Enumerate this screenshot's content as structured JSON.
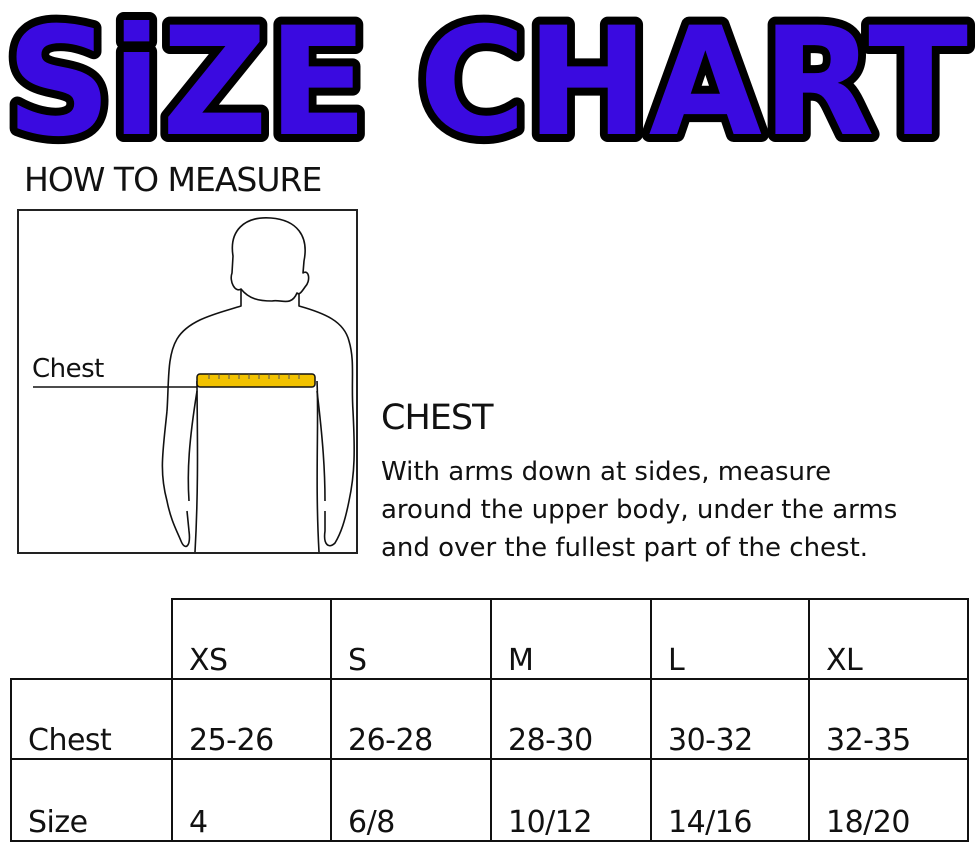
{
  "title": "SiZE CHART",
  "title_color": "#3a0ae0",
  "how_to_measure": "HOW TO MEASURE",
  "figure": {
    "chest_label": "Chest",
    "tape_color": "#f2c200"
  },
  "chest": {
    "heading": "CHEST",
    "lines": [
      "With arms down at sides, measure",
      "around the upper body, under the arms",
      "and over the fullest part of the chest."
    ]
  },
  "table": {
    "columns": [
      "XS",
      "S",
      "M",
      "L",
      "XL"
    ],
    "rows": [
      {
        "label": "Chest",
        "values": [
          "25-26",
          "26-28",
          "28-30",
          "30-32",
          "32-35"
        ]
      },
      {
        "label": "Size",
        "values": [
          "4",
          "6/8",
          "10/12",
          "14/16",
          "18/20"
        ]
      }
    ]
  }
}
